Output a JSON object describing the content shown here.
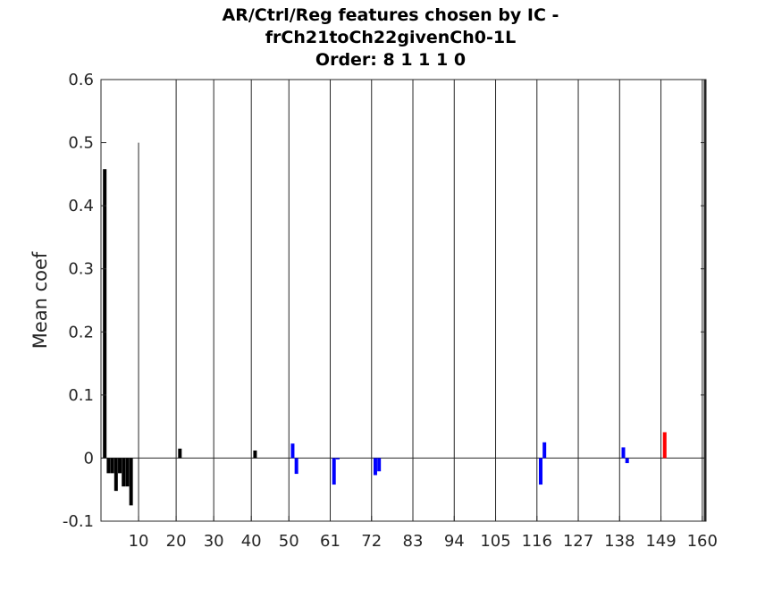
{
  "chart_data": {
    "type": "bar",
    "title": [
      "AR/Ctrl/Reg features chosen by IC -",
      "frCh21toCh22givenCh0-1L",
      "Order: 8 1 1 1 0"
    ],
    "xlabel": "",
    "ylabel": "Mean coef",
    "ylim": [
      -0.1,
      0.6
    ],
    "xlim": [
      0,
      161
    ],
    "yticks": [
      -0.1,
      0,
      0.1,
      0.2,
      0.3,
      0.4,
      0.5,
      0.6
    ],
    "ytick_labels": [
      "-0.1",
      "0",
      "0.1",
      "0.2",
      "0.3",
      "0.4",
      "0.5",
      "0.6"
    ],
    "xticks": [
      10,
      20,
      30,
      40,
      50,
      61,
      72,
      83,
      94,
      105,
      116,
      127,
      138,
      149,
      160
    ],
    "xtick_labels": [
      "10",
      "20",
      "30",
      "40",
      "50",
      "61",
      "72",
      "83",
      "94",
      "105",
      "116",
      "127",
      "138",
      "149",
      "160"
    ],
    "separator_lines": [
      10,
      20,
      30,
      40,
      50,
      61,
      72,
      83,
      94,
      105,
      116,
      127,
      138,
      149,
      160
    ],
    "grid": false,
    "colors": {
      "ar": "#000000",
      "reg": "#0000ff",
      "ctrl": "#ff0000"
    },
    "series": [
      {
        "group": "ar",
        "x": [
          1,
          2,
          3,
          4,
          5,
          6,
          7,
          8,
          21,
          41
        ],
        "values": [
          0.458,
          -0.024,
          -0.024,
          -0.052,
          -0.024,
          -0.045,
          -0.045,
          -0.075,
          0.015,
          0.012
        ]
      },
      {
        "group": "reg",
        "x": [
          51,
          52,
          62,
          63,
          73,
          74,
          117,
          118,
          139,
          140
        ],
        "values": [
          0.023,
          -0.025,
          -0.042,
          -0.002,
          -0.027,
          -0.021,
          -0.042,
          0.025,
          0.017,
          -0.008
        ]
      },
      {
        "group": "ctrl",
        "x": [
          150
        ],
        "values": [
          0.041
        ]
      }
    ]
  }
}
